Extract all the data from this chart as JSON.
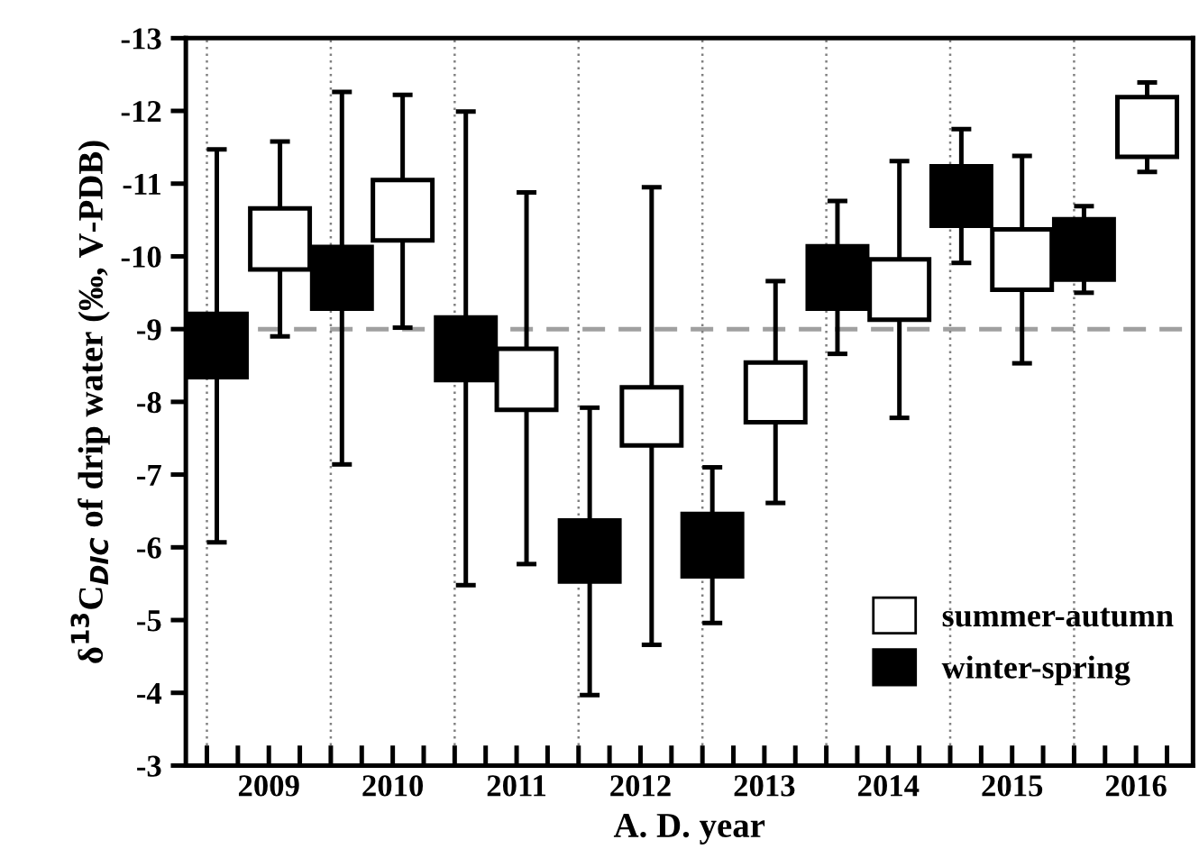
{
  "chart_data": {
    "type": "bar",
    "xlabel": "A. D. year",
    "ylabel": "δ$^{13}$C$_{DIC}$ of drip water (‰, V-PDB)",
    "xlim": [
      2008.83,
      2016.96
    ],
    "xticks": [
      {
        "value": 2009,
        "label": null
      },
      {
        "value": 2009.25,
        "label": null
      },
      {
        "value": 2009.5,
        "label": "2009"
      },
      {
        "value": 2009.75,
        "label": null
      },
      {
        "value": 2010,
        "label": null
      },
      {
        "value": 2010.25,
        "label": null
      },
      {
        "value": 2010.5,
        "label": "2010"
      },
      {
        "value": 2010.75,
        "label": null
      },
      {
        "value": 2011,
        "label": null
      },
      {
        "value": 2011.25,
        "label": null
      },
      {
        "value": 2011.5,
        "label": "2011"
      },
      {
        "value": 2011.75,
        "label": null
      },
      {
        "value": 2012,
        "label": null
      },
      {
        "value": 2012.25,
        "label": null
      },
      {
        "value": 2012.5,
        "label": "2012"
      },
      {
        "value": 2012.75,
        "label": null
      },
      {
        "value": 2013,
        "label": null
      },
      {
        "value": 2013.25,
        "label": null
      },
      {
        "value": 2013.5,
        "label": "2013"
      },
      {
        "value": 2013.75,
        "label": null
      },
      {
        "value": 2014,
        "label": null
      },
      {
        "value": 2014.25,
        "label": null
      },
      {
        "value": 2014.5,
        "label": "2014"
      },
      {
        "value": 2014.75,
        "label": null
      },
      {
        "value": 2015,
        "label": null
      },
      {
        "value": 2015.25,
        "label": null
      },
      {
        "value": 2015.5,
        "label": "2015"
      },
      {
        "value": 2015.75,
        "label": null
      },
      {
        "value": 2016,
        "label": null
      },
      {
        "value": 2016.25,
        "label": null
      },
      {
        "value": 2016.5,
        "label": "2016"
      },
      {
        "value": 2016.75,
        "label": null
      }
    ],
    "ylim": [
      -3,
      -13
    ],
    "yticks": [
      -3,
      -4,
      -5,
      -6,
      -7,
      -8,
      -9,
      -10,
      -11,
      -12,
      -13
    ],
    "legend": "bottom right",
    "grid": false,
    "series": [
      {
        "name": "summer-autumn",
        "color": "#ffffff",
        "x": [
          2009.59,
          2010.58,
          2011.58,
          2012.59,
          2013.59,
          2014.59,
          2015.58,
          2016.59
        ],
        "base": [
          -9.82,
          -10.22,
          -7.89,
          -7.4,
          -7.72,
          -9.13,
          -9.54,
          -11.37
        ],
        "values": [
          -0.84,
          -0.83,
          -0.84,
          -0.8,
          -0.82,
          -0.83,
          -0.83,
          -0.82
        ],
        "errors": [
          [
            -11.58,
            -8.9
          ],
          [
            -12.22,
            -9.02
          ],
          [
            -10.88,
            -5.77
          ],
          [
            -10.95,
            -4.66
          ],
          [
            -9.66,
            -6.61
          ],
          [
            -11.31,
            -7.78
          ],
          [
            -11.38,
            -8.53
          ],
          [
            -12.39,
            -11.16
          ]
        ]
      },
      {
        "name": "winter-spring",
        "color": "#000000",
        "x": [
          2009.08,
          2010.09,
          2011.09,
          2012.09,
          2013.08,
          2014.09,
          2015.09,
          2016.08
        ],
        "base": [
          -8.34,
          -9.28,
          -8.3,
          -5.53,
          -5.6,
          -9.28,
          -10.42,
          -9.68
        ],
        "values": [
          -0.87,
          -0.85,
          -0.86,
          -0.84,
          -0.86,
          -0.86,
          -0.82,
          -0.83
        ],
        "errors": [
          [
            -11.47,
            -6.07
          ],
          [
            -12.26,
            -7.14
          ],
          [
            -11.99,
            -5.48
          ],
          [
            -7.92,
            -3.97
          ],
          [
            -7.1,
            -4.96
          ],
          [
            -10.76,
            -8.66
          ],
          [
            -11.75,
            -9.91
          ],
          [
            -10.69,
            -9.5
          ]
        ]
      }
    ],
    "ref_lines": [
      {
        "axis": "y",
        "value": -9,
        "label": null,
        "color": "#a0a0a0",
        "line_style": "dashed"
      },
      {
        "axis": "x",
        "value": 2009,
        "label": null,
        "color": "#808080",
        "line_style": "dotted"
      },
      {
        "axis": "x",
        "value": 2010,
        "label": null,
        "color": "#808080",
        "line_style": "dotted"
      },
      {
        "axis": "x",
        "value": 2011,
        "label": null,
        "color": "#808080",
        "line_style": "dotted"
      },
      {
        "axis": "x",
        "value": 2012,
        "label": null,
        "color": "#808080",
        "line_style": "dotted"
      },
      {
        "axis": "x",
        "value": 2013,
        "label": null,
        "color": "#808080",
        "line_style": "dotted"
      },
      {
        "axis": "x",
        "value": 2014,
        "label": null,
        "color": "#808080",
        "line_style": "dotted"
      },
      {
        "axis": "x",
        "value": 2015,
        "label": null,
        "color": "#808080",
        "line_style": "dotted"
      },
      {
        "axis": "x",
        "value": 2016,
        "label": null,
        "color": "#808080",
        "line_style": "dotted"
      }
    ]
  }
}
